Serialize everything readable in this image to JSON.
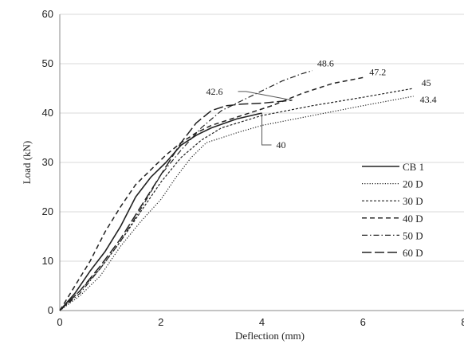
{
  "chart_data": {
    "type": "line",
    "title": "",
    "xlabel": "Deflection (mm)",
    "ylabel": "Load (kN)",
    "xlim": [
      0,
      8
    ],
    "ylim": [
      0,
      60
    ],
    "xticks": [
      "0",
      "2",
      "4",
      "6",
      "8"
    ],
    "yticks": [
      "0",
      "10",
      "20",
      "30",
      "40",
      "50",
      "60"
    ],
    "grid": "horizontal",
    "legend": "right",
    "series": [
      {
        "name": "CB 1",
        "dash": "solid",
        "x": [
          0,
          0.3,
          0.6,
          0.9,
          1.2,
          1.5,
          1.8,
          2.1,
          2.4,
          2.7,
          3.0,
          3.5,
          4.0
        ],
        "y": [
          0,
          3.5,
          8,
          12,
          17,
          23,
          27,
          30,
          33.5,
          35.5,
          37,
          38.8,
          40
        ]
      },
      {
        "name": "20 D",
        "dash": "dotted",
        "x": [
          0,
          0.4,
          0.8,
          1.2,
          1.6,
          2.0,
          2.3,
          2.6,
          2.9,
          3.5,
          4.0,
          5.0,
          6.0,
          7.0
        ],
        "y": [
          0,
          3,
          7,
          13,
          18,
          22.5,
          27,
          31,
          34,
          36,
          37.5,
          39.5,
          41.5,
          43.4
        ]
      },
      {
        "name": "30 D",
        "dash": "short-dash",
        "x": [
          0,
          0.4,
          0.8,
          1.2,
          1.6,
          2.0,
          2.4,
          2.8,
          3.2,
          4.0,
          5.0,
          6.0,
          7.0
        ],
        "y": [
          0,
          4,
          8.5,
          14,
          20,
          26,
          31,
          34.5,
          37,
          39.5,
          41.5,
          43.2,
          45
        ]
      },
      {
        "name": "40 D",
        "dash": "dash",
        "x": [
          0,
          0.3,
          0.6,
          0.9,
          1.2,
          1.5,
          1.8,
          2.1,
          2.4,
          2.7,
          3.0,
          3.6,
          4.2,
          4.8,
          5.4,
          6.0
        ],
        "y": [
          0,
          5,
          10,
          16,
          21,
          25.5,
          28.5,
          31.5,
          34,
          36,
          37.5,
          39.5,
          41.5,
          44,
          46,
          47.2
        ]
      },
      {
        "name": "50 D",
        "dash": "dash-dot",
        "x": [
          0,
          0.4,
          0.8,
          1.2,
          1.6,
          2.0,
          2.4,
          2.8,
          3.2,
          3.6,
          4.0,
          4.4,
          4.8,
          5.0
        ],
        "y": [
          0,
          3.5,
          8.5,
          14,
          20.5,
          27.5,
          32.5,
          37,
          40.5,
          42.5,
          44.5,
          46.5,
          48,
          48.6
        ]
      },
      {
        "name": "60 D",
        "dash": "long-dash",
        "x": [
          0,
          0.4,
          0.8,
          1.2,
          1.6,
          2.0,
          2.4,
          2.7,
          3.0,
          3.3,
          3.6,
          4.0,
          4.3,
          4.6
        ],
        "y": [
          0,
          4,
          9,
          14.5,
          21,
          27.5,
          34,
          38,
          40.5,
          41.5,
          41.8,
          42,
          42.3,
          42.6
        ]
      }
    ],
    "annotations": [
      {
        "text": "48.6",
        "x": 5.0,
        "y": 48.6
      },
      {
        "text": "47.2",
        "x": 6.0,
        "y": 47.2
      },
      {
        "text": "45",
        "x": 7.0,
        "y": 45
      },
      {
        "text": "43.4",
        "x": 7.0,
        "y": 43.4
      },
      {
        "text": "42.6",
        "x": 4.6,
        "y": 42.6
      },
      {
        "text": "40",
        "x": 4.0,
        "y": 40
      }
    ]
  }
}
